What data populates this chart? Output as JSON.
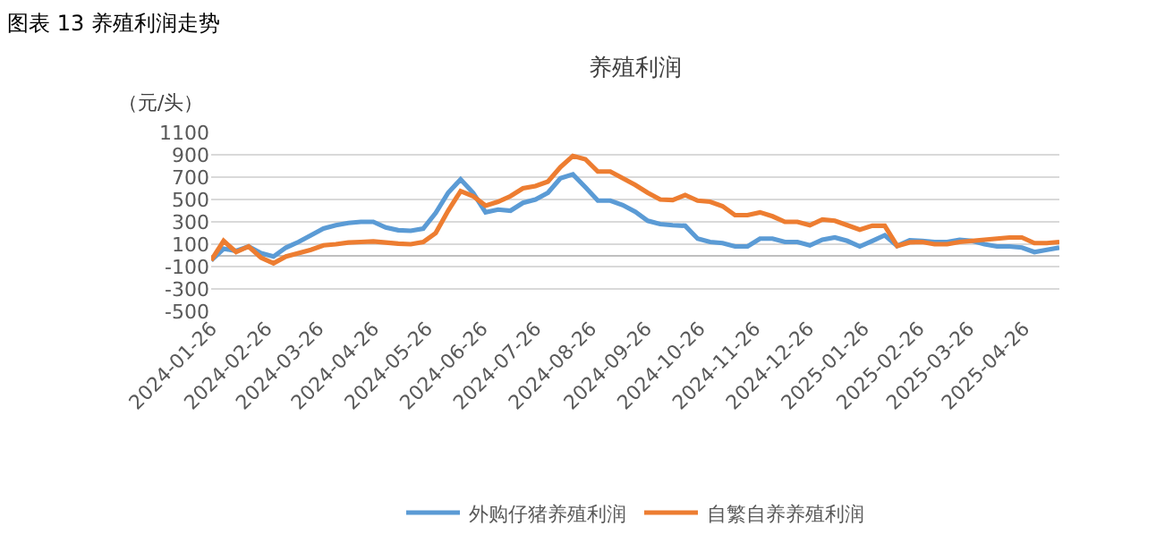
{
  "chart_data": {
    "type": "line",
    "title": "图表 13 养殖利润走势",
    "subtitle": "养殖利润",
    "ylabel": "（元/头）",
    "x": [
      "2024-01-26",
      "2024-02-02",
      "2024-02-09",
      "2024-02-16",
      "2024-02-23",
      "2024-03-01",
      "2024-03-08",
      "2024-03-15",
      "2024-03-22",
      "2024-03-29",
      "2024-04-05",
      "2024-04-12",
      "2024-04-19",
      "2024-04-26",
      "2024-05-03",
      "2024-05-10",
      "2024-05-17",
      "2024-05-24",
      "2024-05-31",
      "2024-06-07",
      "2024-06-14",
      "2024-06-21",
      "2024-06-28",
      "2024-07-05",
      "2024-07-12",
      "2024-07-19",
      "2024-07-26",
      "2024-08-02",
      "2024-08-09",
      "2024-08-16",
      "2024-08-23",
      "2024-08-30",
      "2024-09-06",
      "2024-09-13",
      "2024-09-20",
      "2024-09-27",
      "2024-10-04",
      "2024-10-11",
      "2024-10-18",
      "2024-10-25",
      "2024-11-01",
      "2024-11-08",
      "2024-11-15",
      "2024-11-22",
      "2024-11-29",
      "2024-12-06",
      "2024-12-13",
      "2024-12-20",
      "2024-12-27",
      "2025-01-03",
      "2025-01-10",
      "2025-01-17",
      "2025-01-24",
      "2025-01-31",
      "2025-02-07",
      "2025-02-14",
      "2025-02-21",
      "2025-02-28",
      "2025-03-07",
      "2025-03-14",
      "2025-03-21",
      "2025-03-28",
      "2025-04-04",
      "2025-04-11",
      "2025-04-18",
      "2025-04-25",
      "2025-05-02",
      "2025-05-09",
      "2025-05-16"
    ],
    "series": [
      {
        "name": "外购仔猪养殖利润",
        "color": "#5b9bd5",
        "values": [
          -45,
          60,
          40,
          80,
          20,
          -10,
          70,
          120,
          180,
          240,
          270,
          290,
          300,
          300,
          250,
          225,
          220,
          240,
          380,
          560,
          680,
          560,
          385,
          410,
          400,
          470,
          500,
          560,
          690,
          725,
          610,
          490,
          490,
          450,
          390,
          310,
          280,
          270,
          265,
          150,
          120,
          110,
          80,
          80,
          150,
          150,
          120,
          120,
          90,
          140,
          160,
          130,
          80,
          130,
          180,
          85,
          135,
          130,
          120,
          120,
          140,
          130,
          100,
          80,
          80,
          70,
          30,
          50,
          70
        ]
      },
      {
        "name": "自繁自养养殖利润",
        "color": "#ed7d31",
        "values": [
          -45,
          130,
          30,
          80,
          -20,
          -70,
          -10,
          20,
          50,
          90,
          100,
          115,
          120,
          125,
          115,
          105,
          100,
          120,
          200,
          400,
          575,
          530,
          445,
          480,
          530,
          600,
          620,
          660,
          790,
          890,
          860,
          750,
          750,
          690,
          630,
          560,
          500,
          495,
          540,
          490,
          480,
          440,
          360,
          360,
          385,
          350,
          300,
          300,
          270,
          320,
          310,
          270,
          230,
          265,
          265,
          85,
          117,
          120,
          100,
          100,
          120,
          130,
          140,
          150,
          160,
          160,
          110,
          110,
          120
        ]
      }
    ],
    "xlim": [
      "2024-01-26",
      "2025-05-16"
    ],
    "xticks": [
      "2024-01-26",
      "2024-02-26",
      "2024-03-26",
      "2024-04-26",
      "2024-05-26",
      "2024-06-26",
      "2024-07-26",
      "2024-08-26",
      "2024-09-26",
      "2024-10-26",
      "2024-11-26",
      "2024-12-26",
      "2025-01-26",
      "2025-02-26",
      "2025-03-26",
      "2025-04-26"
    ],
    "ylim": [
      -500,
      1100
    ],
    "yticks": [
      -500,
      -300,
      -100,
      100,
      300,
      500,
      700,
      900,
      1100
    ],
    "grid": "y",
    "legend": "bottom",
    "marker": "none",
    "line_style": "solid"
  }
}
